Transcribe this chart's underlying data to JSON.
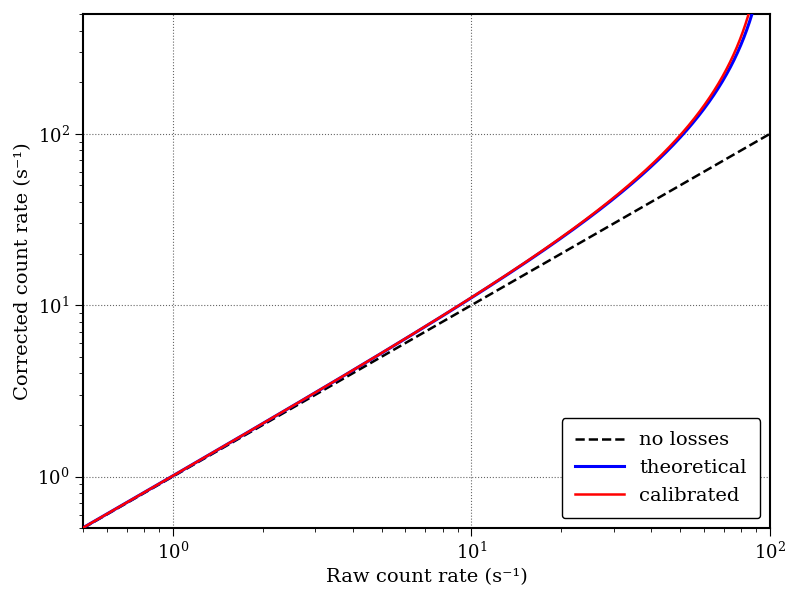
{
  "xlabel": "Raw count rate (s⁻¹)",
  "ylabel": "Corrected count rate (s⁻¹)",
  "xlim": [
    0.5,
    100
  ],
  "ylim": [
    0.5,
    500
  ],
  "x_raw_min": 0.5,
  "x_raw_max": 99.5,
  "dead_time_theoretical": 0.0095,
  "dead_time_calibrated": 0.0098,
  "line_no_losses_color": "#000000",
  "line_theoretical_color": "#0000ff",
  "line_calibrated_color": "#ff0000",
  "legend_labels": [
    "no losses",
    "theoretical",
    "calibrated"
  ],
  "font_size": 14,
  "tick_fontsize": 13,
  "background_color": "#ffffff",
  "linewidth_dashed": 1.8,
  "linewidth_theoretical": 2.2,
  "linewidth_calibrated": 1.8
}
